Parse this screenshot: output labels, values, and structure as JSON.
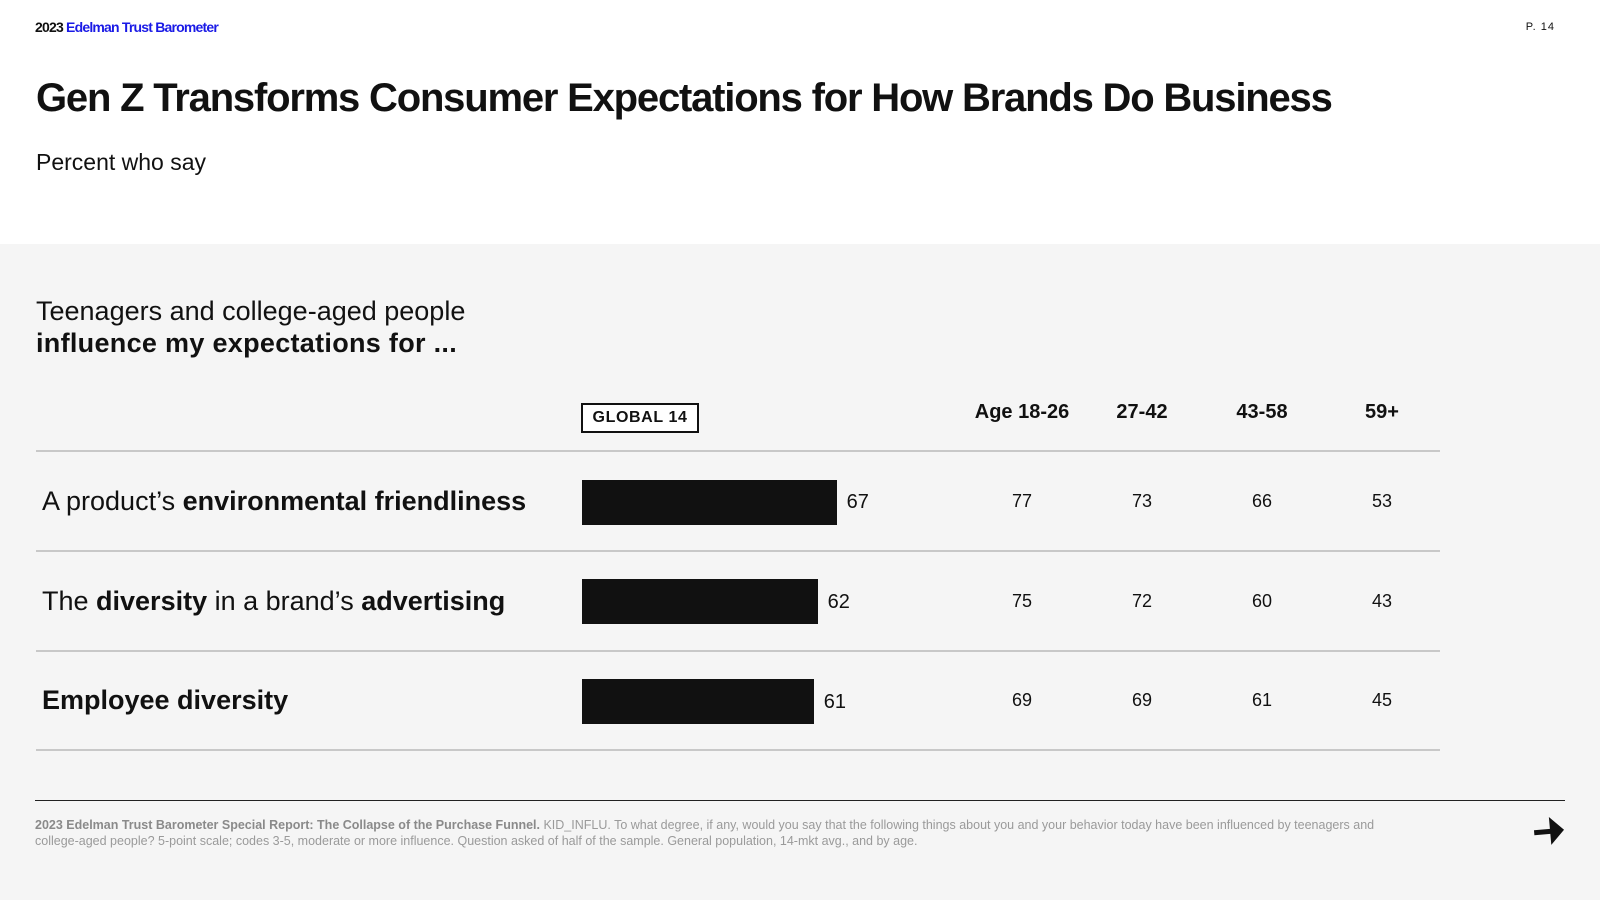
{
  "header": {
    "brand_year": "2023",
    "brand_name": "Edelman Trust Barometer",
    "page_number": "P. 14",
    "title": "Gen Z Transforms Consumer Expectations for How Brands Do Business",
    "subtitle": "Percent who say"
  },
  "question": {
    "line1": "Teenagers and college-aged people",
    "line2": "influence my expectations for ..."
  },
  "chart_data": {
    "type": "bar",
    "orientation": "horizontal",
    "categories": [
      "A product’s environmental friendliness",
      "The diversity in a brand’s advertising",
      "Employee diversity"
    ],
    "series": [
      {
        "name": "GLOBAL 14",
        "values": [
          67,
          62,
          61
        ]
      },
      {
        "name": "Age 18-26",
        "values": [
          77,
          75,
          69
        ]
      },
      {
        "name": "27-42",
        "values": [
          73,
          72,
          69
        ]
      },
      {
        "name": "43-58",
        "values": [
          66,
          60,
          61
        ]
      },
      {
        "name": "59+",
        "values": [
          53,
          43,
          45
        ]
      }
    ],
    "bar_series": "GLOBAL 14",
    "xlim": [
      0,
      100
    ],
    "bar_color": "#111111"
  },
  "rows": [
    {
      "pre": "A product’s ",
      "b1": "environmental friendliness",
      "mid": "",
      "b2": ""
    },
    {
      "pre": "The ",
      "b1": "diversity",
      "mid": " in a brand’s ",
      "b2": "advertising"
    },
    {
      "pre": "",
      "b1": "Employee diversity",
      "mid": "",
      "b2": ""
    }
  ],
  "footnote": {
    "source": "2023 Edelman Trust Barometer Special Report: The Collapse of the Purchase Funnel.",
    "text": " KID_INFLU. To what degree, if any, would you say that the following things about you and your behavior today have been influenced by teenagers and college-aged people? 5-point scale; codes 3-5, moderate or more influence. Question asked of half of the sample. General population, 14-mkt avg., and by age."
  },
  "colors": {
    "brand_blue": "#1a1ae6",
    "bar": "#111111",
    "background": "#f5f5f5"
  },
  "icons": {
    "next": "next-arrow-icon"
  }
}
